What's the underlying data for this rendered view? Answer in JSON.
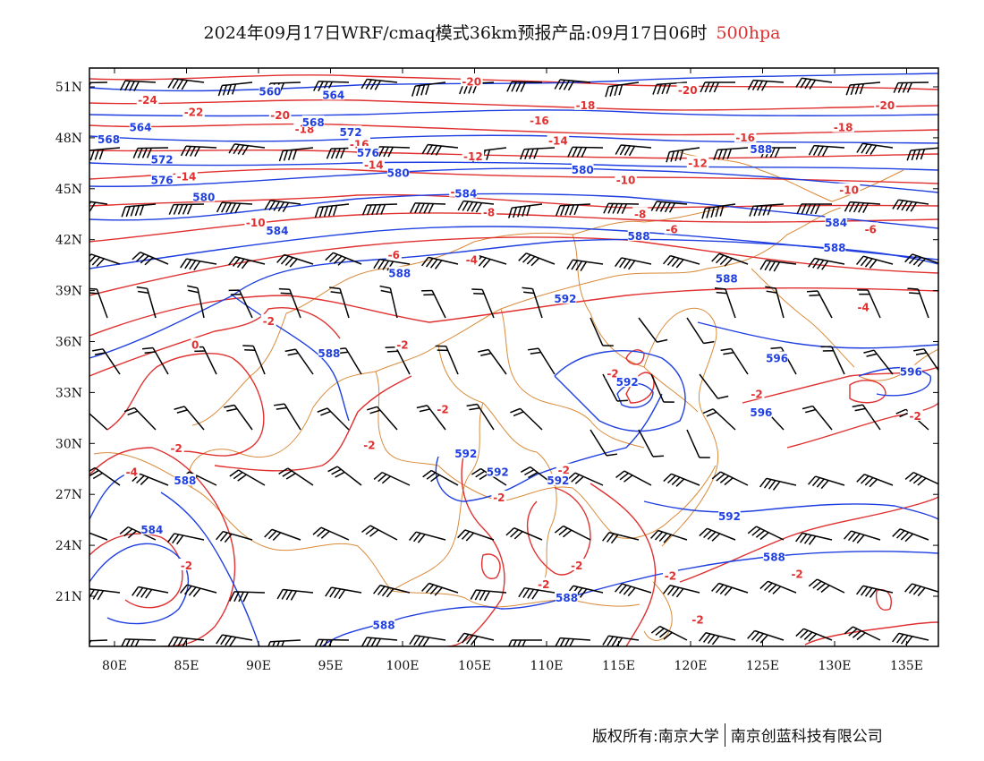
{
  "title": {
    "text": "2024年09月17日WRF/cmaq模式36km预报产品:09月17日06时",
    "level": "500hpa"
  },
  "colors": {
    "temperature": "#e03030",
    "geopotential": "#1f3fe0",
    "boundary": "#d98b3a",
    "wind": "#000000",
    "level_title": "#e03030"
  },
  "axes": {
    "x_ticks": [
      "80E",
      "85E",
      "90E",
      "95E",
      "100E",
      "105E",
      "110E",
      "115E",
      "120E",
      "125E",
      "130E",
      "135E"
    ],
    "y_ticks": [
      "51N",
      "48N",
      "45N",
      "42N",
      "39N",
      "36N",
      "33N",
      "30N",
      "27N",
      "24N",
      "21N"
    ]
  },
  "contours": {
    "temperature_labels": [
      {
        "text": "-24",
        "lon": 82.3,
        "lat": 50.2
      },
      {
        "text": "-22",
        "lon": 85.5,
        "lat": 49.5
      },
      {
        "text": "-20",
        "lon": 91.5,
        "lat": 49.3
      },
      {
        "text": "-18",
        "lon": 93.2,
        "lat": 48.5
      },
      {
        "text": "-20",
        "lon": 104.8,
        "lat": 51.3
      },
      {
        "text": "-18",
        "lon": 112.7,
        "lat": 49.9
      },
      {
        "text": "-16",
        "lon": 109.5,
        "lat": 49.0
      },
      {
        "text": "-14",
        "lon": 110.8,
        "lat": 47.8
      },
      {
        "text": "-20",
        "lon": 119.8,
        "lat": 50.8
      },
      {
        "text": "-18",
        "lon": 130.6,
        "lat": 48.6
      },
      {
        "text": "-16",
        "lon": 123.8,
        "lat": 48.0
      },
      {
        "text": "-20",
        "lon": 133.5,
        "lat": 49.9
      },
      {
        "text": "-16",
        "lon": 97.0,
        "lat": 47.6
      },
      {
        "text": "-14",
        "lon": 98.0,
        "lat": 46.4
      },
      {
        "text": "-12",
        "lon": 104.9,
        "lat": 46.9
      },
      {
        "text": "-12",
        "lon": 120.5,
        "lat": 46.5
      },
      {
        "text": "-14",
        "lon": 85.0,
        "lat": 45.7
      },
      {
        "text": "-10",
        "lon": 104.0,
        "lat": 44.8
      },
      {
        "text": "-10",
        "lon": 115.5,
        "lat": 45.5
      },
      {
        "text": "-10",
        "lon": 131.0,
        "lat": 44.9
      },
      {
        "text": "-10",
        "lon": 89.8,
        "lat": 43.0
      },
      {
        "text": "-8",
        "lon": 106.0,
        "lat": 43.6
      },
      {
        "text": "-8",
        "lon": 116.5,
        "lat": 43.5
      },
      {
        "text": "-6",
        "lon": 118.7,
        "lat": 42.6
      },
      {
        "text": "-6",
        "lon": 132.5,
        "lat": 42.6
      },
      {
        "text": "-6",
        "lon": 99.4,
        "lat": 41.1
      },
      {
        "text": "-4",
        "lon": 104.8,
        "lat": 40.8
      },
      {
        "text": "-4",
        "lon": 132.0,
        "lat": 38.0
      },
      {
        "text": "-2",
        "lon": 90.7,
        "lat": 37.2
      },
      {
        "text": "-2",
        "lon": 100.0,
        "lat": 35.8
      },
      {
        "text": "0",
        "lon": 85.6,
        "lat": 35.8
      },
      {
        "text": "-2",
        "lon": 102.8,
        "lat": 32.0
      },
      {
        "text": "-2",
        "lon": 114.6,
        "lat": 34.1
      },
      {
        "text": "-2",
        "lon": 124.6,
        "lat": 32.9
      },
      {
        "text": "-2",
        "lon": 135.6,
        "lat": 31.6
      },
      {
        "text": "-2",
        "lon": 97.7,
        "lat": 29.9
      },
      {
        "text": "-2",
        "lon": 84.3,
        "lat": 29.7
      },
      {
        "text": "-4",
        "lon": 81.2,
        "lat": 28.3
      },
      {
        "text": "-2",
        "lon": 111.2,
        "lat": 28.4
      },
      {
        "text": "-2",
        "lon": 106.7,
        "lat": 26.8
      },
      {
        "text": "-2",
        "lon": 112.1,
        "lat": 22.8
      },
      {
        "text": "-2",
        "lon": 118.6,
        "lat": 22.2
      },
      {
        "text": "-2",
        "lon": 127.4,
        "lat": 22.3
      },
      {
        "text": "-2",
        "lon": 120.5,
        "lat": 19.6
      },
      {
        "text": "-2",
        "lon": 85.0,
        "lat": 22.8
      },
      {
        "text": "-2",
        "lon": 109.8,
        "lat": 21.7
      }
    ],
    "height_labels": [
      {
        "text": "560",
        "lon": 90.8,
        "lat": 50.7
      },
      {
        "text": "564",
        "lon": 95.2,
        "lat": 50.5
      },
      {
        "text": "568",
        "lon": 93.8,
        "lat": 48.9
      },
      {
        "text": "564",
        "lon": 81.8,
        "lat": 48.6
      },
      {
        "text": "568",
        "lon": 79.6,
        "lat": 47.9
      },
      {
        "text": "572",
        "lon": 96.4,
        "lat": 48.3
      },
      {
        "text": "576",
        "lon": 97.6,
        "lat": 47.1
      },
      {
        "text": "572",
        "lon": 83.3,
        "lat": 46.7
      },
      {
        "text": "576",
        "lon": 83.3,
        "lat": 45.5
      },
      {
        "text": "580",
        "lon": 99.7,
        "lat": 45.9
      },
      {
        "text": "580",
        "lon": 112.5,
        "lat": 46.1
      },
      {
        "text": "588",
        "lon": 124.9,
        "lat": 47.3
      },
      {
        "text": "584",
        "lon": 104.4,
        "lat": 44.7
      },
      {
        "text": "580",
        "lon": 86.2,
        "lat": 44.5
      },
      {
        "text": "584",
        "lon": 130.1,
        "lat": 43.0
      },
      {
        "text": "584",
        "lon": 91.3,
        "lat": 42.5
      },
      {
        "text": "588",
        "lon": 116.4,
        "lat": 42.2
      },
      {
        "text": "588",
        "lon": 130.0,
        "lat": 41.5
      },
      {
        "text": "588",
        "lon": 99.8,
        "lat": 40.0
      },
      {
        "text": "588",
        "lon": 122.5,
        "lat": 39.7
      },
      {
        "text": "592",
        "lon": 111.3,
        "lat": 38.5
      },
      {
        "text": "588",
        "lon": 94.9,
        "lat": 35.3
      },
      {
        "text": "592",
        "lon": 115.6,
        "lat": 33.6
      },
      {
        "text": "596",
        "lon": 126.0,
        "lat": 35.0
      },
      {
        "text": "596",
        "lon": 135.3,
        "lat": 34.2
      },
      {
        "text": "596",
        "lon": 124.9,
        "lat": 31.8
      },
      {
        "text": "592",
        "lon": 104.4,
        "lat": 29.4
      },
      {
        "text": "592",
        "lon": 106.6,
        "lat": 28.3
      },
      {
        "text": "592",
        "lon": 110.8,
        "lat": 27.8
      },
      {
        "text": "588",
        "lon": 84.9,
        "lat": 27.8
      },
      {
        "text": "584",
        "lon": 82.6,
        "lat": 24.9
      },
      {
        "text": "592",
        "lon": 122.7,
        "lat": 25.7
      },
      {
        "text": "588",
        "lon": 125.8,
        "lat": 23.3
      },
      {
        "text": "588",
        "lon": 111.4,
        "lat": 20.9
      },
      {
        "text": "588",
        "lon": 98.7,
        "lat": 19.3
      }
    ]
  },
  "footer": {
    "left": "版权所有:南京大学",
    "right": "南京创蓝科技有限公司"
  }
}
